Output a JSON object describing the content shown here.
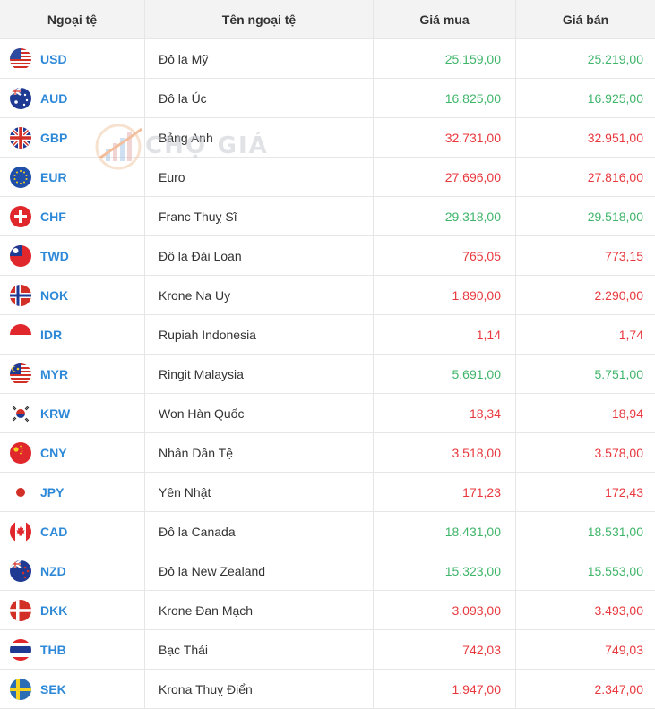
{
  "header": {
    "col_code": "Ngoại tệ",
    "col_name": "Tên ngoại tệ",
    "col_buy": "Giá mua",
    "col_sell": "Giá bán"
  },
  "watermark": {
    "text": "CHỢ GIÁ"
  },
  "colors": {
    "up": "#3fb56a",
    "down": "#e8383d",
    "code": "#2d89d8"
  },
  "rows": [
    {
      "code": "USD",
      "name": "Đô la Mỹ",
      "buy": "25.159,00",
      "sell": "25.219,00",
      "trend": "up",
      "flag": "us-flag-icon"
    },
    {
      "code": "AUD",
      "name": "Đô la Úc",
      "buy": "16.825,00",
      "sell": "16.925,00",
      "trend": "up",
      "flag": "au-flag-icon"
    },
    {
      "code": "GBP",
      "name": "Bảng Anh",
      "buy": "32.731,00",
      "sell": "32.951,00",
      "trend": "down",
      "flag": "gb-flag-icon"
    },
    {
      "code": "EUR",
      "name": "Euro",
      "buy": "27.696,00",
      "sell": "27.816,00",
      "trend": "down",
      "flag": "eu-flag-icon"
    },
    {
      "code": "CHF",
      "name": "Franc Thuỵ Sĩ",
      "buy": "29.318,00",
      "sell": "29.518,00",
      "trend": "up",
      "flag": "ch-flag-icon"
    },
    {
      "code": "TWD",
      "name": "Đô la Đài Loan",
      "buy": "765,05",
      "sell": "773,15",
      "trend": "down",
      "flag": "tw-flag-icon"
    },
    {
      "code": "NOK",
      "name": "Krone Na Uy",
      "buy": "1.890,00",
      "sell": "2.290,00",
      "trend": "down",
      "flag": "no-flag-icon"
    },
    {
      "code": "IDR",
      "name": "Rupiah Indonesia",
      "buy": "1,14",
      "sell": "1,74",
      "trend": "down",
      "flag": "id-flag-icon"
    },
    {
      "code": "MYR",
      "name": "Ringit Malaysia",
      "buy": "5.691,00",
      "sell": "5.751,00",
      "trend": "up",
      "flag": "my-flag-icon"
    },
    {
      "code": "KRW",
      "name": "Won Hàn Quốc",
      "buy": "18,34",
      "sell": "18,94",
      "trend": "down",
      "flag": "kr-flag-icon"
    },
    {
      "code": "CNY",
      "name": "Nhân Dân Tệ",
      "buy": "3.518,00",
      "sell": "3.578,00",
      "trend": "down",
      "flag": "cn-flag-icon"
    },
    {
      "code": "JPY",
      "name": "Yên Nhật",
      "buy": "171,23",
      "sell": "172,43",
      "trend": "down",
      "flag": "jp-flag-icon"
    },
    {
      "code": "CAD",
      "name": "Đô la Canada",
      "buy": "18.431,00",
      "sell": "18.531,00",
      "trend": "up",
      "flag": "ca-flag-icon"
    },
    {
      "code": "NZD",
      "name": "Đô la New Zealand",
      "buy": "15.323,00",
      "sell": "15.553,00",
      "trend": "up",
      "flag": "nz-flag-icon"
    },
    {
      "code": "DKK",
      "name": "Krone Đan Mạch",
      "buy": "3.093,00",
      "sell": "3.493,00",
      "trend": "down",
      "flag": "dk-flag-icon"
    },
    {
      "code": "THB",
      "name": "Bạc Thái",
      "buy": "742,03",
      "sell": "749,03",
      "trend": "down",
      "flag": "th-flag-icon"
    },
    {
      "code": "SEK",
      "name": "Krona Thuỵ Điển",
      "buy": "1.947,00",
      "sell": "2.347,00",
      "trend": "down",
      "flag": "se-flag-icon"
    }
  ]
}
